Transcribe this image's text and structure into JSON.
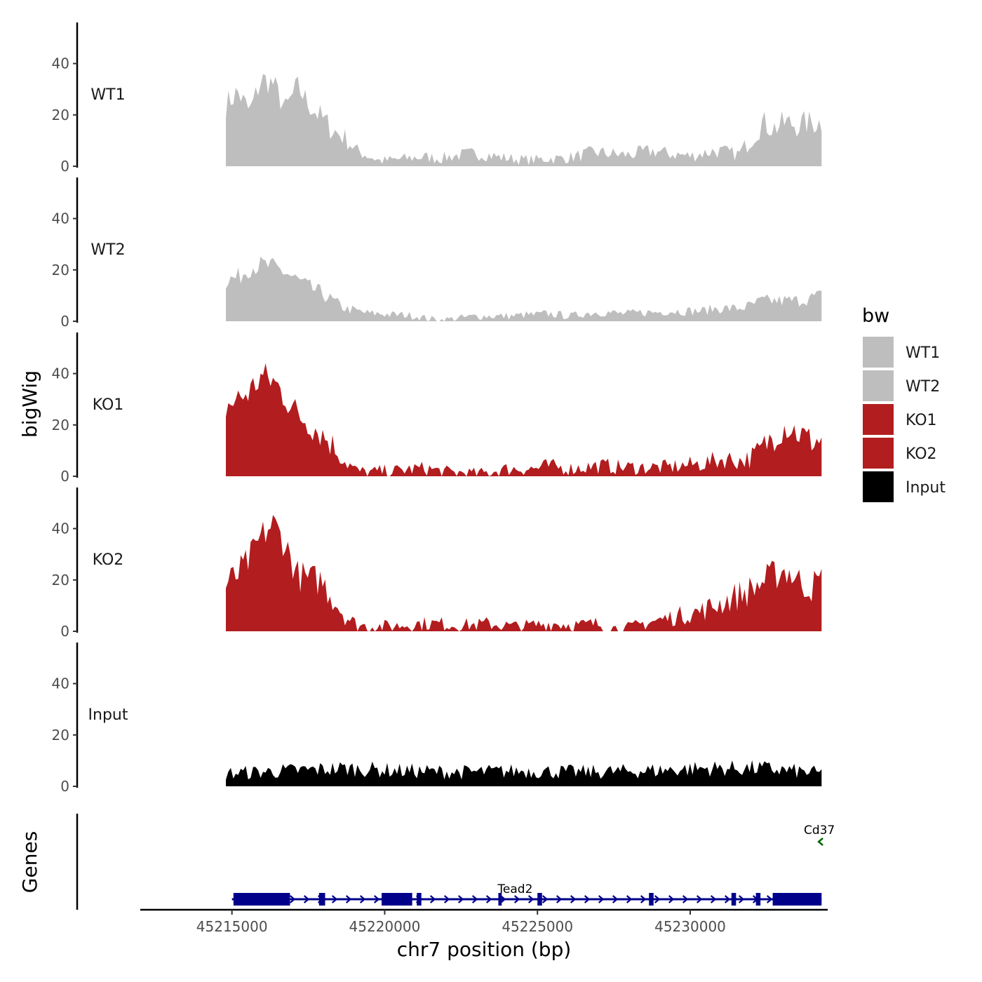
{
  "chart_data": {
    "type": "area",
    "title": "",
    "xlabel": "chr7 position (bp)",
    "ylabel": "bigWig",
    "genes_label": "Genes",
    "xlim": [
      45212000,
      45234500
    ],
    "ylim": [
      0,
      56
    ],
    "region": [
      45214800,
      45234300
    ],
    "y_ticks": [
      0,
      20,
      40
    ],
    "y_tick_labels": [
      "0",
      "20",
      "40"
    ],
    "x_ticks": [
      45215000,
      45220000,
      45225000,
      45230000
    ],
    "x_tick_labels": [
      "45215000",
      "45220000",
      "45225000",
      "45230000"
    ],
    "series": [
      {
        "name": "WT1",
        "color": "#bebebe",
        "knots": [
          [
            0,
            24
          ],
          [
            0.02,
            29
          ],
          [
            0.04,
            21
          ],
          [
            0.06,
            34
          ],
          [
            0.08,
            32
          ],
          [
            0.1,
            22
          ],
          [
            0.12,
            31
          ],
          [
            0.14,
            24
          ],
          [
            0.16,
            19
          ],
          [
            0.18,
            14
          ],
          [
            0.2,
            11
          ],
          [
            0.22,
            6
          ],
          [
            0.24,
            4
          ],
          [
            0.26,
            2
          ],
          [
            0.28,
            2.5
          ],
          [
            0.3,
            3
          ],
          [
            0.32,
            3.5
          ],
          [
            0.34,
            3.5
          ],
          [
            0.36,
            3
          ],
          [
            0.38,
            4
          ],
          [
            0.4,
            4.5
          ],
          [
            0.42,
            5
          ],
          [
            0.44,
            4.5
          ],
          [
            0.46,
            3.5
          ],
          [
            0.48,
            3
          ],
          [
            0.5,
            2.5
          ],
          [
            0.52,
            2.5
          ],
          [
            0.54,
            3
          ],
          [
            0.56,
            3
          ],
          [
            0.58,
            3.5
          ],
          [
            0.6,
            4.5
          ],
          [
            0.62,
            5.5
          ],
          [
            0.64,
            5
          ],
          [
            0.66,
            4.5
          ],
          [
            0.68,
            4.5
          ],
          [
            0.7,
            5.5
          ],
          [
            0.72,
            6
          ],
          [
            0.74,
            5
          ],
          [
            0.76,
            4.5
          ],
          [
            0.78,
            4
          ],
          [
            0.8,
            5
          ],
          [
            0.82,
            6
          ],
          [
            0.84,
            5.5
          ],
          [
            0.86,
            4.5
          ],
          [
            0.88,
            10
          ],
          [
            0.9,
            17
          ],
          [
            0.92,
            15
          ],
          [
            0.94,
            17
          ],
          [
            0.96,
            16
          ],
          [
            0.98,
            17
          ],
          [
            1,
            17
          ]
        ],
        "noise": 4
      },
      {
        "name": "WT2",
        "color": "#bebebe",
        "knots": [
          [
            0,
            16
          ],
          [
            0.02,
            17
          ],
          [
            0.04,
            21
          ],
          [
            0.06,
            22
          ],
          [
            0.08,
            21
          ],
          [
            0.1,
            19
          ],
          [
            0.12,
            16
          ],
          [
            0.14,
            13
          ],
          [
            0.16,
            11
          ],
          [
            0.18,
            8
          ],
          [
            0.2,
            5
          ],
          [
            0.22,
            4
          ],
          [
            0.24,
            3
          ],
          [
            0.26,
            3
          ],
          [
            0.28,
            2.5
          ],
          [
            0.3,
            2.5
          ],
          [
            0.32,
            2
          ],
          [
            0.34,
            1
          ],
          [
            0.36,
            0.5
          ],
          [
            0.38,
            1
          ],
          [
            0.4,
            1.5
          ],
          [
            0.42,
            2
          ],
          [
            0.44,
            2
          ],
          [
            0.46,
            2
          ],
          [
            0.48,
            2
          ],
          [
            0.5,
            2.5
          ],
          [
            0.52,
            2.5
          ],
          [
            0.54,
            3
          ],
          [
            0.56,
            2.5
          ],
          [
            0.58,
            2
          ],
          [
            0.6,
            3
          ],
          [
            0.62,
            3.5
          ],
          [
            0.64,
            3.5
          ],
          [
            0.66,
            3
          ],
          [
            0.68,
            3
          ],
          [
            0.7,
            3.5
          ],
          [
            0.72,
            3.5
          ],
          [
            0.74,
            4
          ],
          [
            0.76,
            4
          ],
          [
            0.78,
            4
          ],
          [
            0.8,
            4
          ],
          [
            0.82,
            5
          ],
          [
            0.84,
            5
          ],
          [
            0.86,
            5
          ],
          [
            0.88,
            6
          ],
          [
            0.9,
            8
          ],
          [
            0.92,
            8
          ],
          [
            0.94,
            8
          ],
          [
            0.96,
            8
          ],
          [
            0.98,
            9
          ],
          [
            1,
            10
          ]
        ],
        "noise": 3
      },
      {
        "name": "KO1",
        "color": "#b21d1f",
        "knots": [
          [
            0,
            27
          ],
          [
            0.02,
            30
          ],
          [
            0.04,
            33
          ],
          [
            0.06,
            39
          ],
          [
            0.08,
            37
          ],
          [
            0.1,
            31
          ],
          [
            0.12,
            24
          ],
          [
            0.14,
            21
          ],
          [
            0.16,
            17
          ],
          [
            0.18,
            12
          ],
          [
            0.2,
            6
          ],
          [
            0.22,
            2
          ],
          [
            0.24,
            1.5
          ],
          [
            0.26,
            2
          ],
          [
            0.28,
            2
          ],
          [
            0.3,
            2.5
          ],
          [
            0.32,
            3
          ],
          [
            0.34,
            3
          ],
          [
            0.36,
            2
          ],
          [
            0.38,
            1.5
          ],
          [
            0.4,
            1.5
          ],
          [
            0.42,
            1
          ],
          [
            0.44,
            1.5
          ],
          [
            0.46,
            2.5
          ],
          [
            0.48,
            3
          ],
          [
            0.5,
            3
          ],
          [
            0.52,
            3
          ],
          [
            0.54,
            4
          ],
          [
            0.56,
            3.5
          ],
          [
            0.58,
            3
          ],
          [
            0.6,
            3.5
          ],
          [
            0.62,
            4
          ],
          [
            0.64,
            4
          ],
          [
            0.66,
            3.5
          ],
          [
            0.68,
            3.5
          ],
          [
            0.7,
            3.5
          ],
          [
            0.72,
            3.5
          ],
          [
            0.74,
            3.5
          ],
          [
            0.76,
            4
          ],
          [
            0.78,
            4.5
          ],
          [
            0.8,
            5
          ],
          [
            0.82,
            6
          ],
          [
            0.84,
            7
          ],
          [
            0.86,
            6
          ],
          [
            0.88,
            7
          ],
          [
            0.9,
            11
          ],
          [
            0.92,
            16
          ],
          [
            0.94,
            20
          ],
          [
            0.96,
            17
          ],
          [
            0.98,
            14
          ],
          [
            1,
            14
          ]
        ],
        "noise": 5
      },
      {
        "name": "KO2",
        "color": "#b21d1f",
        "knots": [
          [
            0,
            18
          ],
          [
            0.02,
            22
          ],
          [
            0.04,
            28
          ],
          [
            0.06,
            37
          ],
          [
            0.08,
            42
          ],
          [
            0.1,
            34
          ],
          [
            0.12,
            22
          ],
          [
            0.14,
            20
          ],
          [
            0.16,
            20
          ],
          [
            0.18,
            13
          ],
          [
            0.2,
            6
          ],
          [
            0.22,
            2.5
          ],
          [
            0.24,
            2
          ],
          [
            0.26,
            2
          ],
          [
            0.28,
            2
          ],
          [
            0.3,
            2.5
          ],
          [
            0.32,
            3
          ],
          [
            0.34,
            3
          ],
          [
            0.36,
            3
          ],
          [
            0.38,
            2.5
          ],
          [
            0.4,
            2.5
          ],
          [
            0.42,
            2.5
          ],
          [
            0.44,
            3
          ],
          [
            0.46,
            2.5
          ],
          [
            0.48,
            2
          ],
          [
            0.5,
            2
          ],
          [
            0.52,
            2.5
          ],
          [
            0.54,
            3
          ],
          [
            0.56,
            3
          ],
          [
            0.58,
            2.5
          ],
          [
            0.6,
            2.5
          ],
          [
            0.62,
            3
          ],
          [
            0.64,
            2
          ],
          [
            0.66,
            1
          ],
          [
            0.68,
            1.5
          ],
          [
            0.7,
            3
          ],
          [
            0.72,
            4
          ],
          [
            0.74,
            5
          ],
          [
            0.76,
            6
          ],
          [
            0.78,
            7
          ],
          [
            0.8,
            8
          ],
          [
            0.82,
            10
          ],
          [
            0.84,
            12
          ],
          [
            0.86,
            14
          ],
          [
            0.88,
            16
          ],
          [
            0.9,
            19
          ],
          [
            0.92,
            22
          ],
          [
            0.94,
            24
          ],
          [
            0.96,
            20
          ],
          [
            0.98,
            17
          ],
          [
            1,
            20
          ]
        ],
        "noise": 5
      },
      {
        "name": "Input",
        "color": "#000000",
        "knots": [
          [
            0,
            5
          ],
          [
            0.1,
            6
          ],
          [
            0.2,
            7
          ],
          [
            0.3,
            6
          ],
          [
            0.4,
            5.5
          ],
          [
            0.5,
            6
          ],
          [
            0.6,
            5.5
          ],
          [
            0.7,
            6
          ],
          [
            0.8,
            7
          ],
          [
            0.9,
            7
          ],
          [
            1,
            5
          ]
        ],
        "noise": 4
      }
    ],
    "legend": {
      "title": "bw",
      "position": "right",
      "entries": [
        {
          "label": "WT1",
          "color": "#bebebe"
        },
        {
          "label": "WT2",
          "color": "#bebebe"
        },
        {
          "label": "KO1",
          "color": "#b21d1f"
        },
        {
          "label": "KO2",
          "color": "#b21d1f"
        },
        {
          "label": "Input",
          "color": "#000000"
        }
      ]
    },
    "genes": [
      {
        "name": "Tead2",
        "strand": "+",
        "start": 45215000,
        "end": 45234300,
        "color": "#00008b",
        "exons": [
          [
            45215050,
            45216600
          ],
          [
            45216400,
            45216900
          ],
          [
            45217850,
            45218050
          ],
          [
            45219900,
            45220500
          ],
          [
            45220450,
            45220900
          ],
          [
            45221050,
            45221200
          ],
          [
            45223720,
            45223830
          ],
          [
            45225000,
            45225150
          ],
          [
            45228650,
            45228800
          ],
          [
            45231350,
            45231500
          ],
          [
            45232150,
            45232300
          ],
          [
            45232700,
            45234300
          ]
        ]
      },
      {
        "name": "Cd37",
        "strand": "-",
        "start": 45234250,
        "end": 45234450,
        "color": "#006400",
        "exons": []
      }
    ]
  }
}
